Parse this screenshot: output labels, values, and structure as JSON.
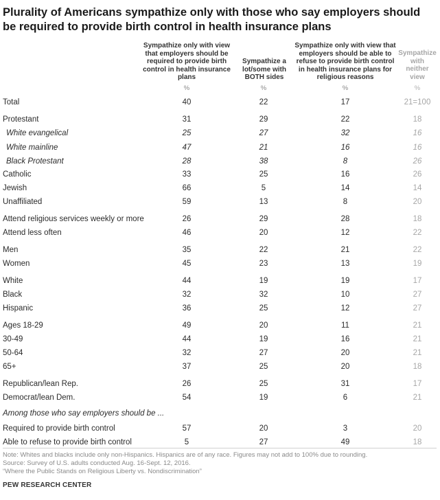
{
  "title": "Plurality of Americans sympathize only with those who say employers should be required to provide birth control in health insurance plans",
  "chart_data": {
    "type": "table",
    "columns": [
      {
        "header": "Sympathize only with view that employers should be required to provide birth control in health insurance plans",
        "unit": "%"
      },
      {
        "header": "Sympathize a lot/some with BOTH sides",
        "unit": "%"
      },
      {
        "header": "Sympathize only with view that employers should be able to refuse to provide birth control in health insurance plans for religious reasons",
        "unit": "%"
      },
      {
        "header": "Sympathize with neither view",
        "unit": "%"
      }
    ],
    "rows": [
      {
        "label": "Total",
        "values": [
          "40",
          "22",
          "17",
          "21=100"
        ],
        "style": "normal"
      },
      {
        "label": "Protestant",
        "values": [
          "31",
          "29",
          "22",
          "18"
        ],
        "style": "normal"
      },
      {
        "label": "White evangelical",
        "values": [
          "25",
          "27",
          "32",
          "16"
        ],
        "style": "italic"
      },
      {
        "label": "White mainline",
        "values": [
          "47",
          "21",
          "16",
          "16"
        ],
        "style": "italic"
      },
      {
        "label": "Black Protestant",
        "values": [
          "28",
          "38",
          "8",
          "26"
        ],
        "style": "italic"
      },
      {
        "label": "Catholic",
        "values": [
          "33",
          "25",
          "16",
          "26"
        ],
        "style": "normal"
      },
      {
        "label": "Jewish",
        "values": [
          "66",
          "5",
          "14",
          "14"
        ],
        "style": "normal"
      },
      {
        "label": "Unaffiliated",
        "values": [
          "59",
          "13",
          "8",
          "20"
        ],
        "style": "normal"
      },
      {
        "label": "Attend religious services weekly or more",
        "values": [
          "26",
          "29",
          "28",
          "18"
        ],
        "style": "normal"
      },
      {
        "label": "Attend less often",
        "values": [
          "46",
          "20",
          "12",
          "22"
        ],
        "style": "normal"
      },
      {
        "label": "Men",
        "values": [
          "35",
          "22",
          "21",
          "22"
        ],
        "style": "normal"
      },
      {
        "label": "Women",
        "values": [
          "45",
          "23",
          "13",
          "19"
        ],
        "style": "normal"
      },
      {
        "label": "White",
        "values": [
          "44",
          "19",
          "19",
          "17"
        ],
        "style": "normal"
      },
      {
        "label": "Black",
        "values": [
          "32",
          "32",
          "10",
          "27"
        ],
        "style": "normal"
      },
      {
        "label": "Hispanic",
        "values": [
          "36",
          "25",
          "12",
          "27"
        ],
        "style": "normal"
      },
      {
        "label": "Ages 18-29",
        "values": [
          "49",
          "20",
          "11",
          "21"
        ],
        "style": "normal"
      },
      {
        "label": "30-49",
        "values": [
          "44",
          "19",
          "16",
          "21"
        ],
        "style": "normal"
      },
      {
        "label": "50-64",
        "values": [
          "32",
          "27",
          "20",
          "21"
        ],
        "style": "normal"
      },
      {
        "label": "65+",
        "values": [
          "37",
          "25",
          "20",
          "18"
        ],
        "style": "normal"
      },
      {
        "label": "Republican/lean Rep.",
        "values": [
          "26",
          "25",
          "31",
          "17"
        ],
        "style": "normal"
      },
      {
        "label": "Democrat/lean Dem.",
        "values": [
          "54",
          "19",
          "6",
          "21"
        ],
        "style": "normal"
      },
      {
        "label": "Required to provide birth control",
        "values": [
          "57",
          "20",
          "3",
          "20"
        ],
        "style": "normal"
      },
      {
        "label": "Able to refuse to provide birth control",
        "values": [
          "5",
          "27",
          "49",
          "18"
        ],
        "style": "normal"
      }
    ],
    "subheading": "Among those who say employers should be ..."
  },
  "headers": {
    "col1": "Sympathize only with view that employers should be required to provide birth control in health insurance plans",
    "col2": "Sympathize a lot/some with BOTH sides",
    "col3": "Sympathize only with view that employers should be able to refuse to provide birth control in health insurance plans for religious reasons",
    "col4": "Sympathize with neither view",
    "pct": "%"
  },
  "notes": {
    "line1": "Note: Whites and blacks include only non-Hispanics. Hispanics are of any race. Figures may not add to 100% due to rounding.",
    "line2": "Source: Survey of U.S. adults conducted Aug. 16-Sept. 12, 2016.",
    "line3": "“Where the Public Stands on Religious Liberty vs. Nondiscrimination”",
    "org": "PEW RESEARCH CENTER"
  }
}
